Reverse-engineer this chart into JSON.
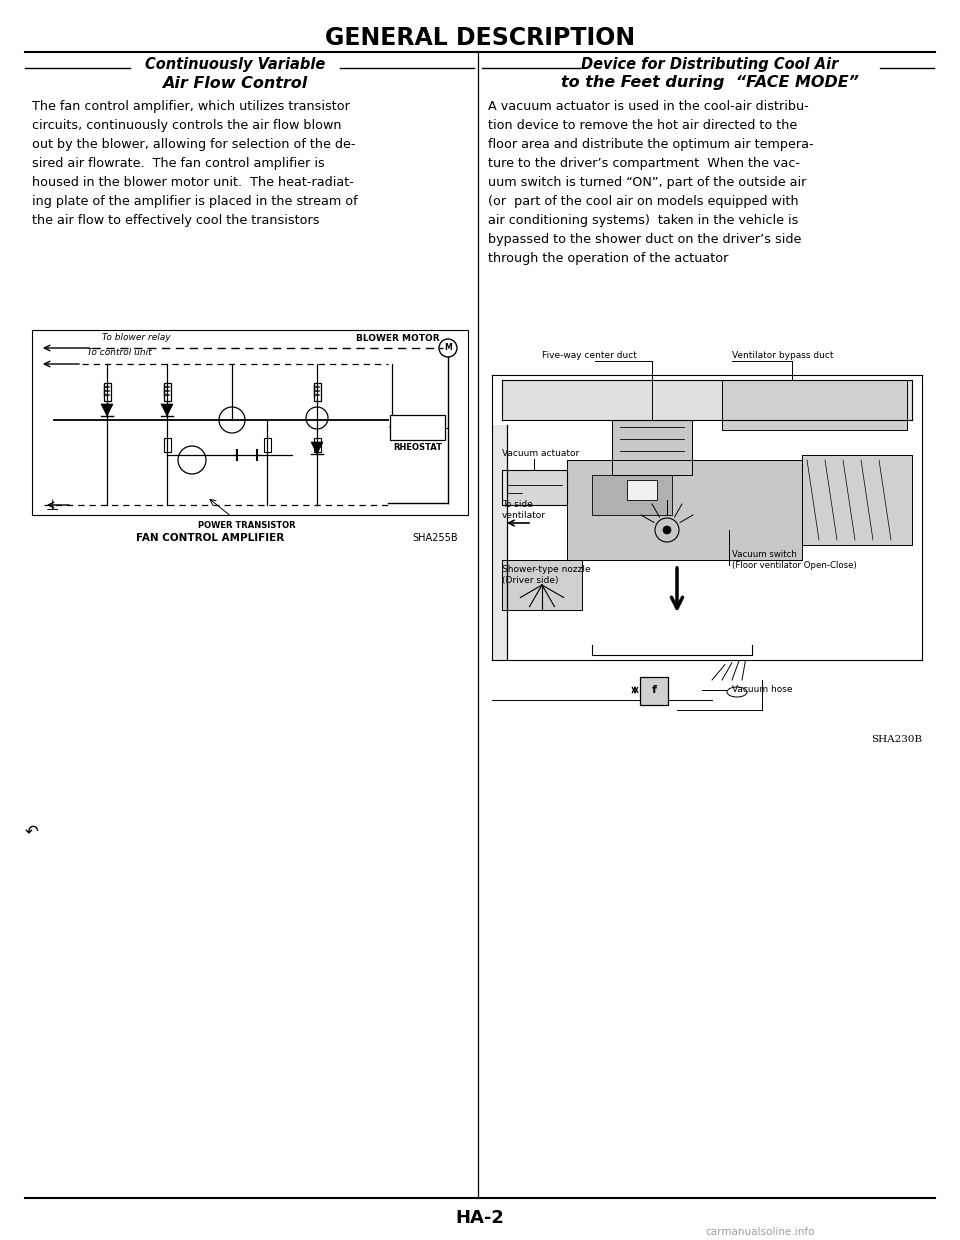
{
  "page_title": "GENERAL DESCRIPTION",
  "left_section_title1": "Continuously Variable",
  "left_section_title2": "Air Flow Control",
  "right_section_title1": "Device for Distributing Cool Air",
  "right_section_title2": "to the Feet during  “FACE MODE”",
  "left_body_text": "The fan control amplifier, which utilizes transistor\ncircuits, continuously controls the air flow blown\nout by the blower, allowing for selection of the de-\nsired air flowrate.  The fan control amplifier is\nhoused in the blower motor unit.  The heat-radiat-\ning plate of the amplifier is placed in the stream of\nthe air flow to effectively cool the transistors",
  "right_body_text": "A vacuum actuator is used in the cool-air distribu-\ntion device to remove the hot air directed to the\nfloor area and distribute the optimum air tempera-\nture to the driver’s compartment  When the vac-\nuum switch is turned “ON”, part of the outside air\n(or  part of the cool air on models equipped with\nair conditioning systems)  taken in the vehicle is\nbypassed to the shower duct on the driver’s side\nthrough the operation of the actuator",
  "left_diagram_label": "FAN CONTROL AMPLIFIER",
  "left_diagram_code": "SHA255B",
  "right_diagram_code": "SHA230B",
  "page_number": "HA-2",
  "watermark": "carmanualsoline.info",
  "bg_color": "#ffffff",
  "text_color": "#000000",
  "title_fontsize": 17,
  "section_title_fontsize": 10.5,
  "body_fontsize": 9.2,
  "label_fontsize": 7.5
}
